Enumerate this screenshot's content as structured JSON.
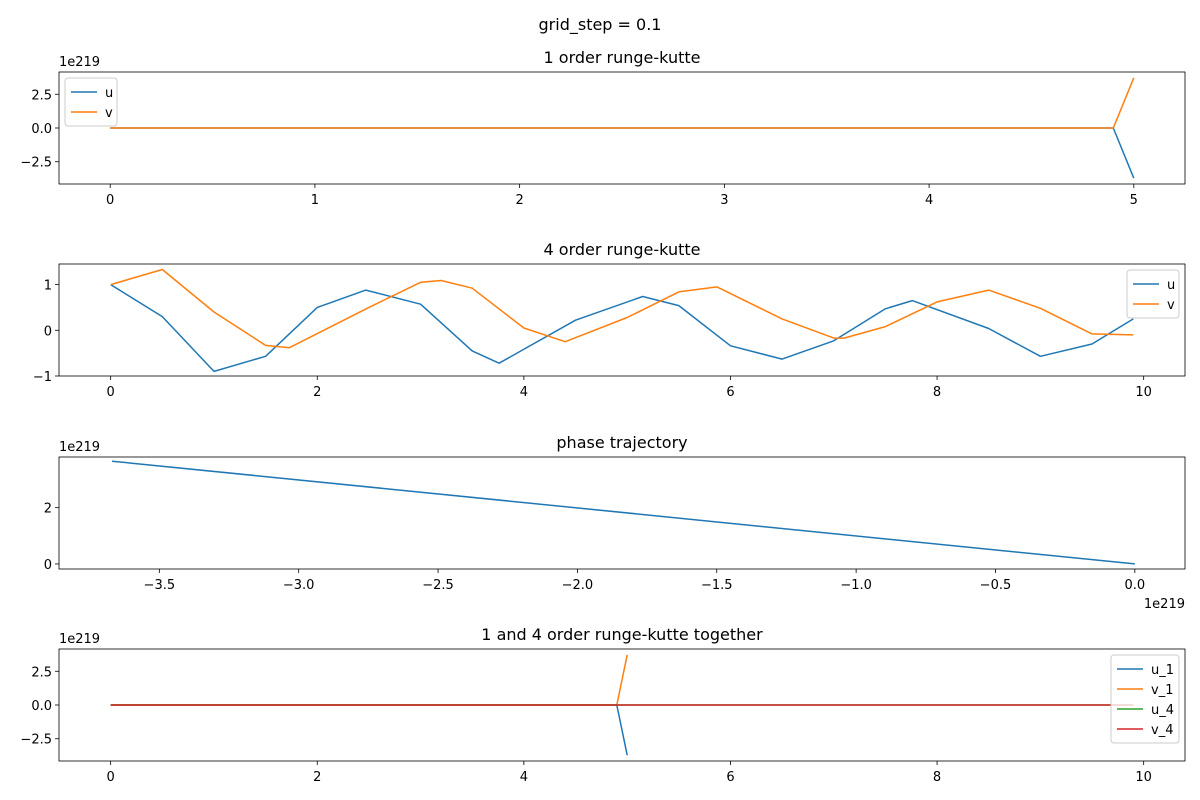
{
  "figure": {
    "suptitle": "grid_step = 0.1"
  },
  "colors": {
    "u": "#1f77b4",
    "v": "#ff7f0e",
    "u_4": "#2ca02c",
    "v_4": "#d62728"
  },
  "chart_data": [
    {
      "type": "line",
      "title": "1 order runge-kutte",
      "offset_text_y": "1e219",
      "xlim": [
        -0.25,
        5.25
      ],
      "ylim": [
        -4.15,
        4.15
      ],
      "xticks": [
        0,
        1,
        2,
        3,
        4,
        5
      ],
      "xtick_labels": [
        "0",
        "1",
        "2",
        "3",
        "4",
        "5"
      ],
      "yticks": [
        2.5,
        0.0,
        -2.5
      ],
      "ytick_labels": [
        "2.5",
        "0.0",
        "−2.5"
      ],
      "legend": "upper-left",
      "series": [
        {
          "name": "u",
          "color_key": "u",
          "x": [
            0,
            4.9,
            5.0
          ],
          "y": [
            0,
            0,
            -3.72
          ]
        },
        {
          "name": "v",
          "color_key": "v",
          "x": [
            0,
            4.9,
            5.0
          ],
          "y": [
            0,
            0,
            3.72
          ]
        }
      ]
    },
    {
      "type": "line",
      "title": "4 order runge-kutte",
      "xlim": [
        -0.5,
        10.4
      ],
      "ylim": [
        -1.0,
        1.45
      ],
      "xticks": [
        0,
        2,
        4,
        6,
        8,
        10
      ],
      "xtick_labels": [
        "0",
        "2",
        "4",
        "6",
        "8",
        "10"
      ],
      "yticks": [
        1,
        0,
        -1
      ],
      "ytick_labels": [
        "1",
        "0",
        "−1"
      ],
      "legend": "upper-right",
      "series": [
        {
          "name": "u",
          "color_key": "u",
          "x": [
            0,
            0.5,
            1.0,
            1.5,
            2.0,
            2.47,
            3.0,
            3.5,
            3.76,
            4.5,
            5.15,
            5.5,
            6.0,
            6.5,
            7.0,
            7.5,
            7.76,
            8.5,
            9.0,
            9.5,
            9.9
          ],
          "y": [
            1.0,
            0.3,
            -0.9,
            -0.57,
            0.5,
            0.88,
            0.57,
            -0.45,
            -0.72,
            0.22,
            0.74,
            0.54,
            -0.34,
            -0.63,
            -0.23,
            0.47,
            0.65,
            0.04,
            -0.57,
            -0.3,
            0.25
          ]
        },
        {
          "name": "v",
          "color_key": "v",
          "x": [
            0,
            0.5,
            1.0,
            1.5,
            1.73,
            2.5,
            3.0,
            3.2,
            3.5,
            4.0,
            4.4,
            5.0,
            5.5,
            5.87,
            6.5,
            7.0,
            7.1,
            7.5,
            8.0,
            8.5,
            9.0,
            9.5,
            9.9
          ],
          "y": [
            1.0,
            1.33,
            0.4,
            -0.33,
            -0.38,
            0.5,
            1.05,
            1.09,
            0.92,
            0.05,
            -0.25,
            0.28,
            0.84,
            0.95,
            0.25,
            -0.17,
            -0.17,
            0.08,
            0.62,
            0.88,
            0.48,
            -0.08,
            -0.1
          ]
        }
      ]
    },
    {
      "type": "line",
      "title": "phase trajectory",
      "offset_text_y": "1e219",
      "offset_text_x": "1e219",
      "xlim": [
        -3.86,
        0.18
      ],
      "ylim": [
        -0.18,
        3.8
      ],
      "xticks": [
        -3.5,
        -3.0,
        -2.5,
        -2.0,
        -1.5,
        -1.0,
        -0.5,
        0.0
      ],
      "xtick_labels": [
        "−3.5",
        "−3.0",
        "−2.5",
        "−2.0",
        "−1.5",
        "−1.0",
        "−0.5",
        "0.0"
      ],
      "yticks": [
        2,
        0
      ],
      "ytick_labels": [
        "2",
        "0"
      ],
      "series": [
        {
          "color_key": "u",
          "x": [
            -3.67,
            0.0
          ],
          "y": [
            3.65,
            0.0
          ]
        }
      ]
    },
    {
      "type": "line",
      "title": "1 and 4 order runge-kutte together",
      "offset_text_y": "1e219",
      "xlim": [
        -0.5,
        10.4
      ],
      "ylim": [
        -4.15,
        4.15
      ],
      "xticks": [
        0,
        2,
        4,
        6,
        8,
        10
      ],
      "xtick_labels": [
        "0",
        "2",
        "4",
        "6",
        "8",
        "10"
      ],
      "yticks": [
        2.5,
        0.0,
        -2.5
      ],
      "ytick_labels": [
        "2.5",
        "0.0",
        "−2.5"
      ],
      "legend": "upper-right",
      "series": [
        {
          "name": "u_1",
          "color_key": "u",
          "x": [
            0,
            4.9,
            5.0
          ],
          "y": [
            0,
            0,
            -3.72
          ]
        },
        {
          "name": "v_1",
          "color_key": "v",
          "x": [
            0,
            4.9,
            5.0
          ],
          "y": [
            0,
            0,
            3.72
          ]
        },
        {
          "name": "u_4",
          "color_key": "u_4",
          "x": [
            0,
            9.9
          ],
          "y": [
            0,
            0
          ]
        },
        {
          "name": "v_4",
          "color_key": "v_4",
          "x": [
            0,
            9.9
          ],
          "y": [
            0,
            0
          ]
        }
      ]
    }
  ]
}
